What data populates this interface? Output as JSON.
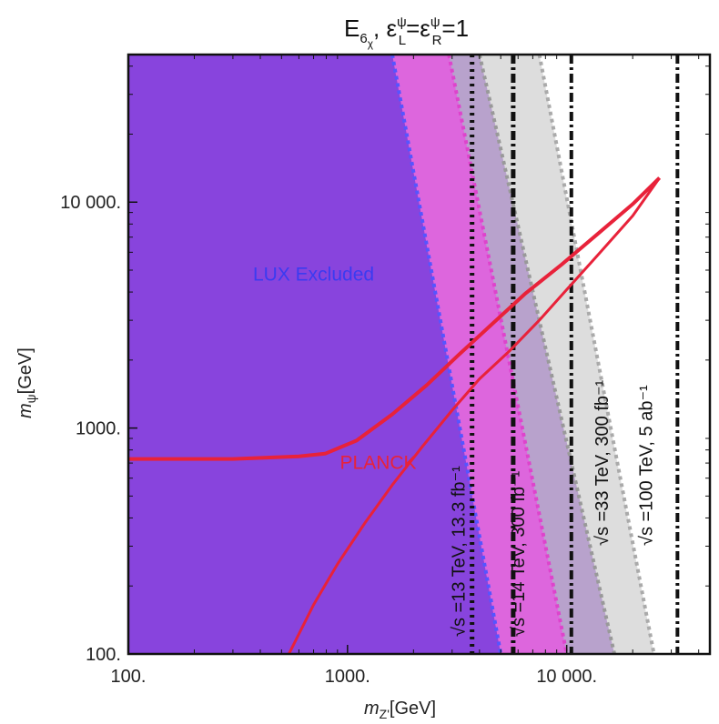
{
  "chart_data": {
    "type": "line",
    "title": "E6χ, εLψ=εRψ=1",
    "title_parts": {
      "base": "E",
      "sub1": "6",
      "sub2": "χ",
      "rest": ", ",
      "eps": "ε",
      "supL": "ψ",
      "subL": "L",
      "eq": "=",
      "supR": "ψ",
      "subR": "R",
      "val": "=1"
    },
    "xlabel": "mZ'[GeV]",
    "ylabel": "mψ[GeV]",
    "xlabel_parts": {
      "m": "m",
      "sub": "Z'",
      "unit": "[GeV]"
    },
    "ylabel_parts": {
      "m": "m",
      "sub": "ψ",
      "unit": "[GeV]"
    },
    "xscale": "log",
    "yscale": "log",
    "xlim": [
      100,
      45000
    ],
    "ylim": [
      100,
      45000
    ],
    "xticks": [
      {
        "value": 100,
        "label": "100."
      },
      {
        "value": 1000,
        "label": "1000."
      },
      {
        "value": 10000,
        "label": "10 000."
      }
    ],
    "yticks": [
      {
        "value": 100,
        "label": "100."
      },
      {
        "value": 1000,
        "label": "1000."
      },
      {
        "value": 10000,
        "label": "10 000."
      }
    ],
    "regions": [
      {
        "name": "LUX Excluded",
        "color": "#8844dd",
        "boundary_color": "#5555ff",
        "boundary": [
          [
            1600,
            45000
          ],
          [
            5000,
            100
          ]
        ]
      },
      {
        "name": "",
        "color": "#dd66dd",
        "boundary_color": "#dd44cc",
        "boundary": [
          [
            2900,
            45000
          ],
          [
            10000,
            100
          ]
        ]
      },
      {
        "name": "",
        "color": "#b8a2cc",
        "boundary_color": "#999999",
        "boundary": [
          [
            4000,
            45000
          ],
          [
            16500,
            100
          ]
        ]
      },
      {
        "name": "",
        "color": "#dddddd",
        "boundary_color": "#aaaaaa",
        "boundary": [
          [
            7500,
            45000
          ],
          [
            25000,
            100
          ]
        ]
      }
    ],
    "series": [
      {
        "name": "PLANCK",
        "color": "#e8223a",
        "x": [
          100,
          300,
          600,
          790,
          1100,
          1600,
          2300,
          3200,
          4500,
          6500,
          9500,
          14000,
          20000,
          26500
        ],
        "y": [
          730,
          730,
          750,
          770,
          880,
          1150,
          1550,
          2100,
          2850,
          3950,
          5300,
          7300,
          9800,
          12800
        ]
      },
      {
        "name": "PLANCK",
        "color": "#e8223a",
        "x": [
          540,
          700,
          900,
          1200,
          1600,
          2200,
          3000,
          4000,
          5500,
          7500,
          10000,
          14000,
          20000,
          26500
        ],
        "y": [
          100,
          165,
          250,
          380,
          560,
          830,
          1200,
          1650,
          2200,
          3000,
          4100,
          5900,
          8700,
          12800
        ]
      }
    ],
    "vlines": [
      {
        "x": 3700,
        "label": "√s =13 TeV, 13.3 fb⁻¹",
        "style": "dotted-thick"
      },
      {
        "x": 5700,
        "label": "√s =14 TeV, 300 fb⁻¹",
        "style": "dashdot-thick"
      },
      {
        "x": 10500,
        "label": "√s =33 TeV, 300 fb⁻¹",
        "style": "dashdot"
      },
      {
        "x": 32000,
        "label": "√s =100 TeV, 5 ab⁻¹",
        "style": "dashdot"
      }
    ],
    "annotations": [
      {
        "text": "LUX Excluded",
        "x": 700,
        "y": 4500
      },
      {
        "text": "PLANCK",
        "x": 1380,
        "y": 660
      }
    ],
    "grid": false
  }
}
